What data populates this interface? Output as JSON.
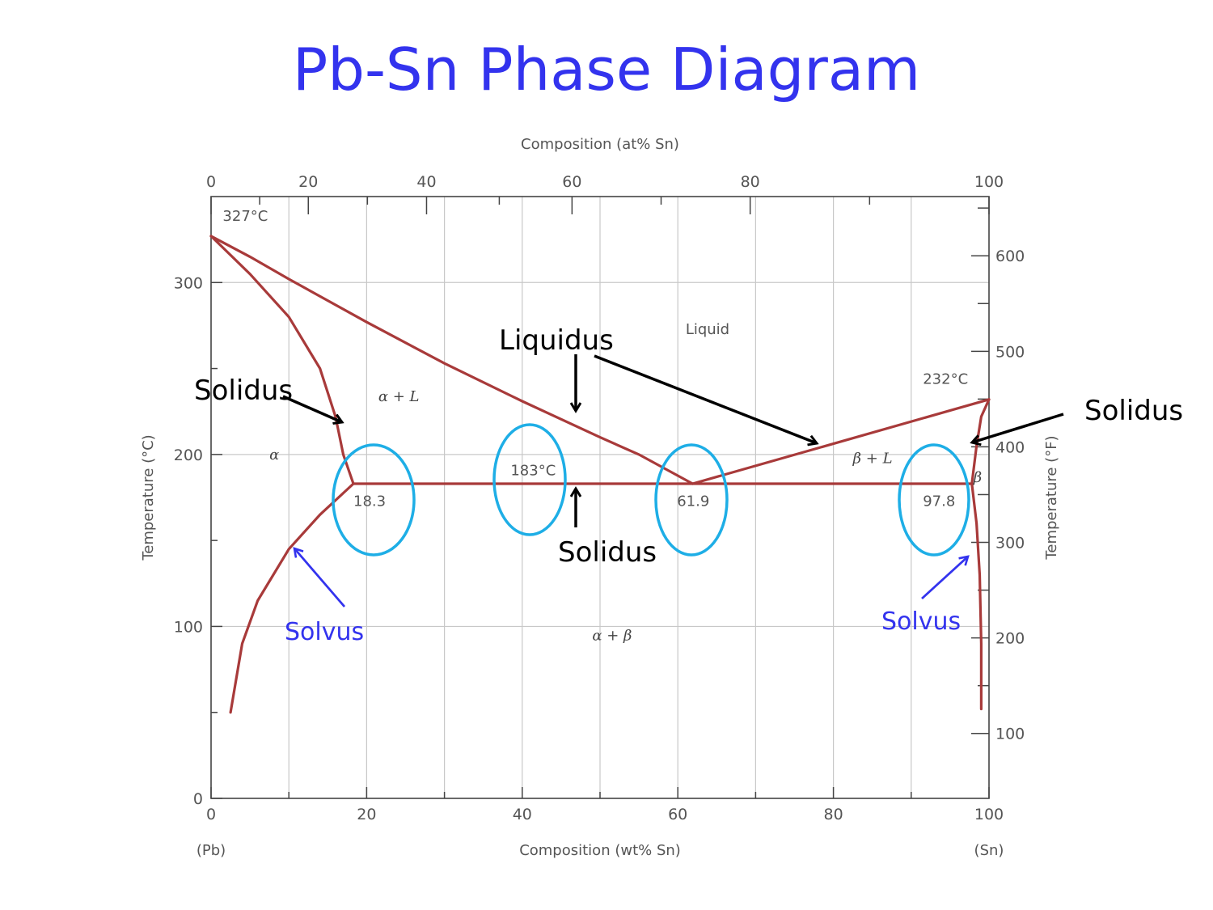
{
  "slide": {
    "title": "Pb-Sn Phase Diagram"
  },
  "chart_data": {
    "type": "line",
    "top_axis": {
      "title": "Composition (at% Sn)",
      "ticks": [
        0,
        20,
        40,
        60,
        80,
        100
      ],
      "tick_positions_wt": [
        0,
        12.5,
        27.7,
        46.4,
        69.3,
        100
      ]
    },
    "bottom_axis": {
      "title": "Composition (wt% Sn)",
      "ticks": [
        0,
        20,
        40,
        60,
        80,
        100
      ],
      "range": [
        0,
        100
      ],
      "end_labels": [
        "(Pb)",
        "(Sn)"
      ]
    },
    "left_axis": {
      "title": "Temperature (°C)",
      "ticks": [
        0,
        100,
        200,
        300
      ],
      "range": [
        0,
        350
      ]
    },
    "right_axis": {
      "title": "Temperature (°F)",
      "ticks": [
        100,
        200,
        300,
        400,
        500,
        600
      ]
    },
    "grid": true,
    "curves": [
      {
        "name": "liquidus_left",
        "points": [
          [
            0,
            327
          ],
          [
            5,
            315
          ],
          [
            10,
            302
          ],
          [
            20,
            277
          ],
          [
            30,
            253
          ],
          [
            40,
            231
          ],
          [
            50,
            210
          ],
          [
            55,
            200
          ],
          [
            61.9,
            183
          ]
        ]
      },
      {
        "name": "liquidus_right",
        "points": [
          [
            61.9,
            183
          ],
          [
            100,
            232
          ]
        ]
      },
      {
        "name": "solidus_left",
        "points": [
          [
            0,
            327
          ],
          [
            5,
            305
          ],
          [
            10,
            280
          ],
          [
            14,
            250
          ],
          [
            16,
            222
          ],
          [
            17,
            200
          ],
          [
            18.3,
            183
          ]
        ]
      },
      {
        "name": "solvus_left",
        "points": [
          [
            18.3,
            183
          ],
          [
            14,
            165
          ],
          [
            10,
            145
          ],
          [
            6,
            115
          ],
          [
            4,
            90
          ],
          [
            2.5,
            50
          ]
        ]
      },
      {
        "name": "eutectic_isotherm",
        "points": [
          [
            18.3,
            183
          ],
          [
            97.8,
            183
          ]
        ]
      },
      {
        "name": "solidus_right",
        "points": [
          [
            100,
            232
          ],
          [
            99,
            222
          ],
          [
            98.4,
            205
          ],
          [
            97.8,
            183
          ]
        ]
      },
      {
        "name": "solvus_right",
        "points": [
          [
            97.8,
            183
          ],
          [
            98.4,
            160
          ],
          [
            98.8,
            130
          ],
          [
            99.0,
            90
          ],
          [
            99.0,
            52
          ]
        ]
      }
    ],
    "point_labels": [
      {
        "text": "327°C",
        "x": 1.5,
        "y": 336
      },
      {
        "text": "232°C",
        "x": 91.5,
        "y": 241
      },
      {
        "text": "183°C",
        "x": 38.5,
        "y": 188
      },
      {
        "text": "18.3",
        "x": 18.3,
        "y": 170
      },
      {
        "text": "61.9",
        "x": 59.9,
        "y": 170
      },
      {
        "text": "97.8",
        "x": 91.5,
        "y": 170
      }
    ],
    "region_labels": [
      {
        "text": "Liquid",
        "x": 61,
        "y": 270,
        "italic": false
      },
      {
        "text": "α  + L",
        "x": 21.5,
        "y": 231,
        "italic": true
      },
      {
        "text": "α",
        "x": 7.5,
        "y": 197,
        "italic": true
      },
      {
        "text": "β + L",
        "x": 82.5,
        "y": 195,
        "italic": true
      },
      {
        "text": "β",
        "x": 98.0,
        "y": 184,
        "italic": true
      },
      {
        "text": "α  + β",
        "x": 49,
        "y": 92,
        "italic": true
      }
    ]
  },
  "annotations": {
    "liquidus": "Liquidus",
    "solidus_left": "Solidus",
    "solidus_right": "Solidus",
    "solidus_center": "Solidus",
    "solvus_left": "Solvus",
    "solvus_right": "Solvus"
  }
}
